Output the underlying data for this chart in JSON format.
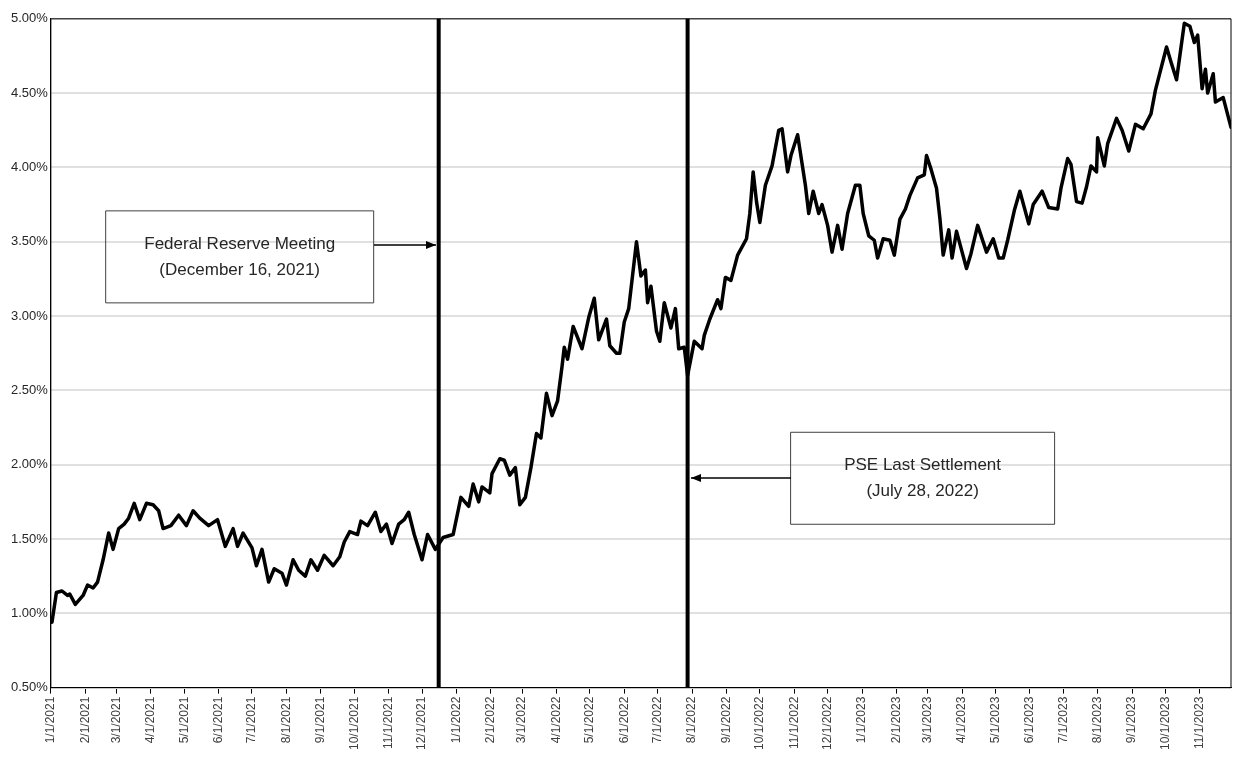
{
  "chart_data": {
    "type": "line",
    "grid": "y",
    "xlim": [
      "2021-01-01",
      "2023-11-29"
    ],
    "xticks": [
      {
        "value": "2021-01-01",
        "label": "1/1/2021"
      },
      {
        "value": "2021-02-01",
        "label": "2/1/2021"
      },
      {
        "value": "2021-03-01",
        "label": "3/1/2021"
      },
      {
        "value": "2021-04-01",
        "label": "4/1/2021"
      },
      {
        "value": "2021-05-01",
        "label": "5/1/2021"
      },
      {
        "value": "2021-06-01",
        "label": "6/1/2021"
      },
      {
        "value": "2021-07-01",
        "label": "7/1/2021"
      },
      {
        "value": "2021-08-01",
        "label": "8/1/2021"
      },
      {
        "value": "2021-09-01",
        "label": "9/1/2021"
      },
      {
        "value": "2021-10-01",
        "label": "10/1/2021"
      },
      {
        "value": "2021-11-01",
        "label": "11/1/2021"
      },
      {
        "value": "2021-12-01",
        "label": "12/1/2021"
      },
      {
        "value": "2022-01-01",
        "label": "1/1/2022"
      },
      {
        "value": "2022-02-01",
        "label": "2/1/2022"
      },
      {
        "value": "2022-03-01",
        "label": "3/1/2022"
      },
      {
        "value": "2022-04-01",
        "label": "4/1/2022"
      },
      {
        "value": "2022-05-01",
        "label": "5/1/2022"
      },
      {
        "value": "2022-06-01",
        "label": "6/1/2022"
      },
      {
        "value": "2022-07-01",
        "label": "7/1/2022"
      },
      {
        "value": "2022-08-01",
        "label": "8/1/2022"
      },
      {
        "value": "2022-09-01",
        "label": "9/1/2022"
      },
      {
        "value": "2022-10-01",
        "label": "10/1/2022"
      },
      {
        "value": "2022-11-01",
        "label": "11/1/2022"
      },
      {
        "value": "2022-12-01",
        "label": "12/1/2022"
      },
      {
        "value": "2023-01-01",
        "label": "1/1/2023"
      },
      {
        "value": "2023-02-01",
        "label": "2/1/2023"
      },
      {
        "value": "2023-03-01",
        "label": "3/1/2023"
      },
      {
        "value": "2023-04-01",
        "label": "4/1/2023"
      },
      {
        "value": "2023-05-01",
        "label": "5/1/2023"
      },
      {
        "value": "2023-06-01",
        "label": "6/1/2023"
      },
      {
        "value": "2023-07-01",
        "label": "7/1/2023"
      },
      {
        "value": "2023-08-01",
        "label": "8/1/2023"
      },
      {
        "value": "2023-09-01",
        "label": "9/1/2023"
      },
      {
        "value": "2023-10-01",
        "label": "10/1/2023"
      },
      {
        "value": "2023-11-01",
        "label": "11/1/2023"
      }
    ],
    "ylim": [
      0.5,
      5.0
    ],
    "yticks": [
      {
        "value": 0.5,
        "label": "0.50%"
      },
      {
        "value": 1.0,
        "label": "1.00%"
      },
      {
        "value": 1.5,
        "label": "1.50%"
      },
      {
        "value": 2.0,
        "label": "2.00%"
      },
      {
        "value": 2.5,
        "label": "2.50%"
      },
      {
        "value": 3.0,
        "label": "3.00%"
      },
      {
        "value": 3.5,
        "label": "3.50%"
      },
      {
        "value": 4.0,
        "label": "4.00%"
      },
      {
        "value": 4.5,
        "label": "4.50%"
      },
      {
        "value": 5.0,
        "label": "5.00%"
      }
    ],
    "ref_lines": [
      {
        "axis": "x",
        "value": "2021-12-16",
        "color": "#000000"
      },
      {
        "axis": "x",
        "value": "2022-07-28",
        "color": "#000000"
      }
    ],
    "annotations": [
      "Federal Reserve Meeting\n(December 16, 2021)",
      "PSE Last Settlement\n(July 28, 2022)"
    ],
    "series": [
      {
        "color": "#000000",
        "x": [
          "2021-01-01",
          "2021-01-02",
          "2021-01-06",
          "2021-01-11",
          "2021-01-16",
          "2021-01-18",
          "2021-01-23",
          "2021-01-30",
          "2021-02-03",
          "2021-02-08",
          "2021-02-12",
          "2021-02-17",
          "2021-02-22",
          "2021-02-26",
          "2021-03-03",
          "2021-03-08",
          "2021-03-12",
          "2021-03-17",
          "2021-03-22",
          "2021-03-28",
          "2021-04-03",
          "2021-04-08",
          "2021-04-12",
          "2021-04-19",
          "2021-04-26",
          "2021-05-03",
          "2021-05-09",
          "2021-05-15",
          "2021-05-23",
          "2021-05-31",
          "2021-06-07",
          "2021-06-14",
          "2021-06-18",
          "2021-06-23",
          "2021-07-01",
          "2021-07-05",
          "2021-07-10",
          "2021-07-16",
          "2021-07-21",
          "2021-07-28",
          "2021-08-01",
          "2021-08-07",
          "2021-08-12",
          "2021-08-18",
          "2021-08-23",
          "2021-08-29",
          "2021-09-04",
          "2021-09-12",
          "2021-09-18",
          "2021-09-22",
          "2021-09-27",
          "2021-10-04",
          "2021-10-07",
          "2021-10-13",
          "2021-10-20",
          "2021-10-25",
          "2021-10-30",
          "2021-11-04",
          "2021-11-10",
          "2021-11-15",
          "2021-11-19",
          "2021-11-24",
          "2021-12-01",
          "2021-12-06",
          "2021-12-13",
          "2021-12-20",
          "2021-12-29",
          "2022-01-05",
          "2022-01-12",
          "2022-01-16",
          "2022-01-21",
          "2022-01-24",
          "2022-01-31",
          "2022-02-02",
          "2022-02-09",
          "2022-02-13",
          "2022-02-18",
          "2022-02-23",
          "2022-02-27",
          "2022-03-04",
          "2022-03-09",
          "2022-03-14",
          "2022-03-18",
          "2022-03-23",
          "2022-03-28",
          "2022-04-02",
          "2022-04-06",
          "2022-04-08",
          "2022-04-11",
          "2022-04-16",
          "2022-04-24",
          "2022-04-30",
          "2022-05-05",
          "2022-05-09",
          "2022-05-16",
          "2022-05-19",
          "2022-05-25",
          "2022-05-28",
          "2022-06-01",
          "2022-06-05",
          "2022-06-12",
          "2022-06-16",
          "2022-06-20",
          "2022-06-22",
          "2022-06-25",
          "2022-06-30",
          "2022-07-03",
          "2022-07-07",
          "2022-07-13",
          "2022-07-17",
          "2022-07-20",
          "2022-07-25",
          "2022-07-28",
          "2022-08-03",
          "2022-08-10",
          "2022-08-12",
          "2022-08-17",
          "2022-08-24",
          "2022-08-27",
          "2022-08-31",
          "2022-09-05",
          "2022-09-11",
          "2022-09-19",
          "2022-09-22",
          "2022-09-25",
          "2022-09-28",
          "2022-10-01",
          "2022-10-06",
          "2022-10-12",
          "2022-10-18",
          "2022-10-21",
          "2022-10-26",
          "2022-10-29",
          "2022-11-04",
          "2022-11-11",
          "2022-11-14",
          "2022-11-18",
          "2022-11-23",
          "2022-11-26",
          "2022-12-01",
          "2022-12-05",
          "2022-12-10",
          "2022-12-14",
          "2022-12-19",
          "2022-12-26",
          "2022-12-30",
          "2023-01-02",
          "2023-01-07",
          "2023-01-12",
          "2023-01-15",
          "2023-01-20",
          "2023-01-26",
          "2023-01-30",
          "2023-02-04",
          "2023-02-09",
          "2023-02-13",
          "2023-02-20",
          "2023-02-26",
          "2023-02-28",
          "2023-03-04",
          "2023-03-09",
          "2023-03-12",
          "2023-03-15",
          "2023-03-20",
          "2023-03-23",
          "2023-03-27",
          "2023-04-05",
          "2023-04-09",
          "2023-04-15",
          "2023-04-23",
          "2023-04-29",
          "2023-05-04",
          "2023-05-08",
          "2023-05-12",
          "2023-05-18",
          "2023-05-23",
          "2023-05-31",
          "2023-06-04",
          "2023-06-12",
          "2023-06-18",
          "2023-06-26",
          "2023-06-29",
          "2023-07-05",
          "2023-07-08",
          "2023-07-13",
          "2023-07-18",
          "2023-07-22",
          "2023-07-26",
          "2023-07-31",
          "2023-08-01",
          "2023-08-07",
          "2023-08-10",
          "2023-08-18",
          "2023-08-23",
          "2023-08-29",
          "2023-09-04",
          "2023-09-11",
          "2023-09-18",
          "2023-09-22",
          "2023-10-02",
          "2023-10-06",
          "2023-10-11",
          "2023-10-18",
          "2023-10-23",
          "2023-10-27",
          "2023-10-30",
          "2023-11-03",
          "2023-11-06",
          "2023-11-08",
          "2023-11-13",
          "2023-11-15",
          "2023-11-22",
          "2023-11-29"
        ],
        "values": [
          0.94,
          0.94,
          1.14,
          1.15,
          1.12,
          1.13,
          1.06,
          1.12,
          1.19,
          1.17,
          1.21,
          1.36,
          1.54,
          1.43,
          1.57,
          1.6,
          1.64,
          1.74,
          1.63,
          1.74,
          1.73,
          1.69,
          1.57,
          1.59,
          1.66,
          1.59,
          1.69,
          1.64,
          1.59,
          1.63,
          1.45,
          1.57,
          1.45,
          1.54,
          1.44,
          1.32,
          1.43,
          1.21,
          1.3,
          1.27,
          1.19,
          1.36,
          1.29,
          1.25,
          1.36,
          1.29,
          1.39,
          1.32,
          1.38,
          1.48,
          1.55,
          1.53,
          1.62,
          1.59,
          1.68,
          1.55,
          1.6,
          1.47,
          1.6,
          1.63,
          1.68,
          1.53,
          1.36,
          1.53,
          1.43,
          1.51,
          1.53,
          1.78,
          1.72,
          1.87,
          1.75,
          1.85,
          1.81,
          1.94,
          2.04,
          2.03,
          1.93,
          1.98,
          1.73,
          1.78,
          1.98,
          2.21,
          2.18,
          2.48,
          2.33,
          2.43,
          2.66,
          2.79,
          2.71,
          2.93,
          2.78,
          2.99,
          3.12,
          2.84,
          2.98,
          2.8,
          2.75,
          2.75,
          2.96,
          3.05,
          3.5,
          3.27,
          3.31,
          3.09,
          3.2,
          2.9,
          2.83,
          3.09,
          2.92,
          3.05,
          2.78,
          2.79,
          2.6,
          2.83,
          2.78,
          2.87,
          2.98,
          3.11,
          3.05,
          3.26,
          3.24,
          3.41,
          3.52,
          3.69,
          3.97,
          3.77,
          3.63,
          3.88,
          4.01,
          4.25,
          4.26,
          3.97,
          4.08,
          4.22,
          3.88,
          3.69,
          3.84,
          3.69,
          3.75,
          3.61,
          3.43,
          3.61,
          3.45,
          3.69,
          3.88,
          3.88,
          3.69,
          3.54,
          3.51,
          3.39,
          3.52,
          3.51,
          3.41,
          3.65,
          3.72,
          3.81,
          3.93,
          3.95,
          4.08,
          3.99,
          3.86,
          3.66,
          3.41,
          3.58,
          3.39,
          3.57,
          3.32,
          3.42,
          3.61,
          3.43,
          3.52,
          3.39,
          3.39,
          3.51,
          3.71,
          3.84,
          3.62,
          3.75,
          3.84,
          3.73,
          3.72,
          3.86,
          4.06,
          4.02,
          3.77,
          3.76,
          3.87,
          4.01,
          3.97,
          4.2,
          4.01,
          4.16,
          4.33,
          4.25,
          4.11,
          4.29,
          4.26,
          4.36,
          4.52,
          4.81,
          4.71,
          4.59,
          4.97,
          4.95,
          4.84,
          4.89,
          4.53,
          4.66,
          4.5,
          4.63,
          4.44,
          4.47,
          4.27
        ]
      }
    ]
  }
}
